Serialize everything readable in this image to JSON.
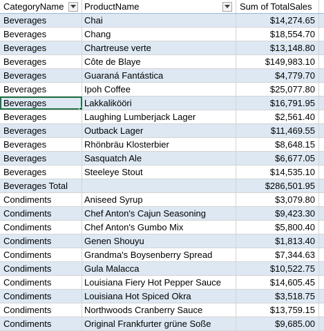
{
  "header": {
    "category": "CategoryName",
    "product": "ProductName",
    "sales": "Sum of TotalSales"
  },
  "rows": [
    {
      "category": "Beverages",
      "product": "Chai",
      "sales": "$14,274.65"
    },
    {
      "category": "Beverages",
      "product": "Chang",
      "sales": "$18,554.70"
    },
    {
      "category": "Beverages",
      "product": "Chartreuse verte",
      "sales": "$13,148.80"
    },
    {
      "category": "Beverages",
      "product": "Côte de Blaye",
      "sales": "$149,983.10"
    },
    {
      "category": "Beverages",
      "product": "Guaraná Fantástica",
      "sales": "$4,779.70"
    },
    {
      "category": "Beverages",
      "product": "Ipoh Coffee",
      "sales": "$25,077.80"
    },
    {
      "category": "Beverages",
      "product": "Lakkalikööri",
      "sales": "$16,791.95"
    },
    {
      "category": "Beverages",
      "product": "Laughing Lumberjack Lager",
      "sales": "$2,561.40"
    },
    {
      "category": "Beverages",
      "product": "Outback Lager",
      "sales": "$11,469.55"
    },
    {
      "category": "Beverages",
      "product": "Rhönbräu Klosterbier",
      "sales": "$8,648.15"
    },
    {
      "category": "Beverages",
      "product": "Sasquatch Ale",
      "sales": "$6,677.05"
    },
    {
      "category": "Beverages",
      "product": "Steeleye Stout",
      "sales": "$14,535.10"
    },
    {
      "category": "Beverages Total",
      "product": "",
      "sales": "$286,501.95"
    },
    {
      "category": "Condiments",
      "product": "Aniseed Syrup",
      "sales": "$3,079.80"
    },
    {
      "category": "Condiments",
      "product": "Chef Anton's Cajun Seasoning",
      "sales": "$9,423.30"
    },
    {
      "category": "Condiments",
      "product": "Chef Anton's Gumbo Mix",
      "sales": "$5,800.40"
    },
    {
      "category": "Condiments",
      "product": "Genen Shouyu",
      "sales": "$1,813.40"
    },
    {
      "category": "Condiments",
      "product": "Grandma's Boysenberry Spread",
      "sales": "$7,344.63"
    },
    {
      "category": "Condiments",
      "product": "Gula Malacca",
      "sales": "$10,522.75"
    },
    {
      "category": "Condiments",
      "product": "Louisiana Fiery Hot Pepper Sauce",
      "sales": "$14,605.45"
    },
    {
      "category": "Condiments",
      "product": "Louisiana Hot Spiced Okra",
      "sales": "$3,518.75"
    },
    {
      "category": "Condiments",
      "product": "Northwoods Cranberry Sauce",
      "sales": "$13,759.15"
    },
    {
      "category": "Condiments",
      "product": "Original Frankfurter grüne Soße",
      "sales": "$9,685.00"
    }
  ],
  "colors": {
    "band": "#dde8f3",
    "gridline": "#d4d4d4",
    "selection": "#217346"
  },
  "icons": {
    "filter": "dropdown-arrow-icon"
  }
}
